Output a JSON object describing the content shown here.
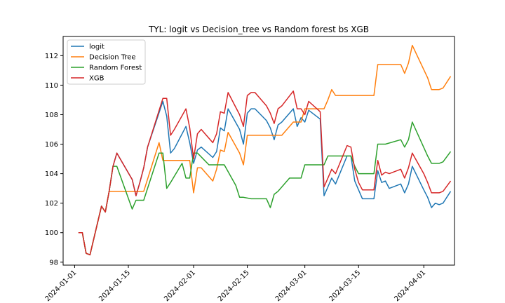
{
  "chart_data": {
    "type": "line",
    "title": "TYL: logit vs Decision_tree vs Random forest bs XGB",
    "xlabel": "",
    "ylabel": "",
    "xlim": [
      "2023-12-29",
      "2024-04-09"
    ],
    "ylim": [
      97.8,
      113.3
    ],
    "x_ticks": [
      "2024-01-01",
      "2024-01-15",
      "2024-02-01",
      "2024-02-15",
      "2024-03-01",
      "2024-03-15",
      "2024-04-01"
    ],
    "y_ticks": [
      98,
      100,
      102,
      104,
      106,
      108,
      110,
      112
    ],
    "grid": false,
    "legend_position": "top-left",
    "series": [
      {
        "name": "logit",
        "color": "#1f77b4",
        "points": [
          [
            "2024-01-02",
            100.0
          ],
          [
            "2024-01-03",
            100.0
          ],
          [
            "2024-01-04",
            98.6
          ],
          [
            "2024-01-05",
            98.5
          ],
          [
            "2024-01-08",
            101.8
          ],
          [
            "2024-01-09",
            101.4
          ],
          [
            "2024-01-10",
            102.8
          ],
          [
            "2024-01-11",
            104.5
          ],
          [
            "2024-01-12",
            105.4
          ],
          [
            "2024-01-16",
            103.6
          ],
          [
            "2024-01-17",
            102.5
          ],
          [
            "2024-01-18",
            103.4
          ],
          [
            "2024-01-19",
            104.4
          ],
          [
            "2024-01-20",
            105.8
          ],
          [
            "2024-01-24",
            108.9
          ],
          [
            "2024-01-25",
            107.9
          ],
          [
            "2024-01-26",
            105.4
          ],
          [
            "2024-01-27",
            105.7
          ],
          [
            "2024-01-30",
            107.2
          ],
          [
            "2024-01-31",
            106.1
          ],
          [
            "2024-02-01",
            104.7
          ],
          [
            "2024-02-02",
            105.6
          ],
          [
            "2024-02-03",
            105.8
          ],
          [
            "2024-02-06",
            105.1
          ],
          [
            "2024-02-07",
            105.5
          ],
          [
            "2024-02-08",
            107.1
          ],
          [
            "2024-02-09",
            106.9
          ],
          [
            "2024-02-10",
            108.4
          ],
          [
            "2024-02-13",
            107.0
          ],
          [
            "2024-02-14",
            106.0
          ],
          [
            "2024-02-15",
            108.1
          ],
          [
            "2024-02-16",
            108.4
          ],
          [
            "2024-02-17",
            108.4
          ],
          [
            "2024-02-20",
            107.6
          ],
          [
            "2024-02-21",
            107.1
          ],
          [
            "2024-02-22",
            106.3
          ],
          [
            "2024-02-23",
            107.3
          ],
          [
            "2024-02-24",
            107.5
          ],
          [
            "2024-02-27",
            108.4
          ],
          [
            "2024-02-28",
            107.2
          ],
          [
            "2024-02-29",
            107.8
          ],
          [
            "2024-03-01",
            107.5
          ],
          [
            "2024-03-02",
            108.3
          ],
          [
            "2024-03-05",
            107.7
          ],
          [
            "2024-03-06",
            102.5
          ],
          [
            "2024-03-07",
            103.1
          ],
          [
            "2024-03-08",
            103.7
          ],
          [
            "2024-03-09",
            103.3
          ],
          [
            "2024-03-12",
            105.2
          ],
          [
            "2024-03-13",
            105.2
          ],
          [
            "2024-03-14",
            103.5
          ],
          [
            "2024-03-15",
            102.9
          ],
          [
            "2024-03-16",
            102.3
          ],
          [
            "2024-03-19",
            102.3
          ],
          [
            "2024-03-20",
            104.2
          ],
          [
            "2024-03-21",
            103.4
          ],
          [
            "2024-03-22",
            103.5
          ],
          [
            "2024-03-23",
            103.0
          ],
          [
            "2024-03-26",
            103.3
          ],
          [
            "2024-03-27",
            102.7
          ],
          [
            "2024-03-28",
            103.3
          ],
          [
            "2024-03-29",
            104.5
          ],
          [
            "2024-04-01",
            102.9
          ],
          [
            "2024-04-02",
            102.4
          ],
          [
            "2024-04-03",
            101.7
          ],
          [
            "2024-04-04",
            102.0
          ],
          [
            "2024-04-05",
            101.9
          ],
          [
            "2024-04-06",
            102.0
          ],
          [
            "2024-04-08",
            102.8
          ]
        ]
      },
      {
        "name": "Decision Tree",
        "color": "#ff7f0e",
        "points": [
          [
            "2024-01-02",
            100.0
          ],
          [
            "2024-01-03",
            100.0
          ],
          [
            "2024-01-04",
            98.6
          ],
          [
            "2024-01-05",
            98.5
          ],
          [
            "2024-01-08",
            101.8
          ],
          [
            "2024-01-09",
            101.4
          ],
          [
            "2024-01-10",
            102.8
          ],
          [
            "2024-01-16",
            102.8
          ],
          [
            "2024-01-17",
            102.8
          ],
          [
            "2024-01-18",
            102.8
          ],
          [
            "2024-01-19",
            102.8
          ],
          [
            "2024-01-23",
            106.1
          ],
          [
            "2024-01-24",
            104.9
          ],
          [
            "2024-01-30",
            104.9
          ],
          [
            "2024-01-31",
            104.9
          ],
          [
            "2024-02-01",
            102.7
          ],
          [
            "2024-02-02",
            104.4
          ],
          [
            "2024-02-03",
            104.4
          ],
          [
            "2024-02-06",
            103.5
          ],
          [
            "2024-02-07",
            104.3
          ],
          [
            "2024-02-08",
            105.6
          ],
          [
            "2024-02-09",
            105.5
          ],
          [
            "2024-02-10",
            106.8
          ],
          [
            "2024-02-13",
            105.4
          ],
          [
            "2024-02-14",
            104.6
          ],
          [
            "2024-02-15",
            106.6
          ],
          [
            "2024-02-16",
            106.6
          ],
          [
            "2024-02-23",
            106.6
          ],
          [
            "2024-02-24",
            106.6
          ],
          [
            "2024-02-27",
            107.5
          ],
          [
            "2024-02-28",
            107.5
          ],
          [
            "2024-02-29",
            107.5
          ],
          [
            "2024-03-01",
            108.4
          ],
          [
            "2024-03-05",
            108.4
          ],
          [
            "2024-03-06",
            108.4
          ],
          [
            "2024-03-07",
            109.0
          ],
          [
            "2024-03-08",
            109.7
          ],
          [
            "2024-03-09",
            109.3
          ],
          [
            "2024-03-19",
            109.3
          ],
          [
            "2024-03-20",
            111.4
          ],
          [
            "2024-03-26",
            111.4
          ],
          [
            "2024-03-27",
            110.8
          ],
          [
            "2024-03-28",
            111.5
          ],
          [
            "2024-03-29",
            112.7
          ],
          [
            "2024-04-02",
            110.5
          ],
          [
            "2024-04-03",
            109.7
          ],
          [
            "2024-04-04",
            109.7
          ],
          [
            "2024-04-05",
            109.7
          ],
          [
            "2024-04-06",
            109.8
          ],
          [
            "2024-04-08",
            110.6
          ]
        ]
      },
      {
        "name": "Random Forest",
        "color": "#2ca02c",
        "points": [
          [
            "2024-01-02",
            100.0
          ],
          [
            "2024-01-03",
            100.0
          ],
          [
            "2024-01-04",
            98.6
          ],
          [
            "2024-01-05",
            98.5
          ],
          [
            "2024-01-08",
            101.8
          ],
          [
            "2024-01-09",
            101.4
          ],
          [
            "2024-01-10",
            102.8
          ],
          [
            "2024-01-11",
            104.5
          ],
          [
            "2024-01-12",
            104.5
          ],
          [
            "2024-01-16",
            101.6
          ],
          [
            "2024-01-17",
            102.2
          ],
          [
            "2024-01-19",
            102.2
          ],
          [
            "2024-01-23",
            105.4
          ],
          [
            "2024-01-24",
            105.4
          ],
          [
            "2024-01-25",
            103.0
          ],
          [
            "2024-01-26",
            103.4
          ],
          [
            "2024-01-29",
            104.7
          ],
          [
            "2024-01-30",
            103.7
          ],
          [
            "2024-01-31",
            103.7
          ],
          [
            "2024-02-01",
            105.4
          ],
          [
            "2024-02-02",
            105.4
          ],
          [
            "2024-02-05",
            104.6
          ],
          [
            "2024-02-06",
            104.6
          ],
          [
            "2024-02-09",
            104.6
          ],
          [
            "2024-02-12",
            103.2
          ],
          [
            "2024-02-13",
            102.4
          ],
          [
            "2024-02-14",
            102.4
          ],
          [
            "2024-02-16",
            102.3
          ],
          [
            "2024-02-20",
            102.3
          ],
          [
            "2024-02-21",
            101.7
          ],
          [
            "2024-02-22",
            102.6
          ],
          [
            "2024-02-23",
            102.8
          ],
          [
            "2024-02-26",
            103.7
          ],
          [
            "2024-02-29",
            103.7
          ],
          [
            "2024-03-01",
            104.6
          ],
          [
            "2024-03-05",
            104.6
          ],
          [
            "2024-03-06",
            104.6
          ],
          [
            "2024-03-07",
            105.2
          ],
          [
            "2024-03-12",
            105.2
          ],
          [
            "2024-03-13",
            105.2
          ],
          [
            "2024-03-14",
            104.5
          ],
          [
            "2024-03-15",
            104.0
          ],
          [
            "2024-03-19",
            104.0
          ],
          [
            "2024-03-20",
            106.0
          ],
          [
            "2024-03-22",
            106.0
          ],
          [
            "2024-03-26",
            106.3
          ],
          [
            "2024-03-27",
            105.8
          ],
          [
            "2024-03-28",
            106.3
          ],
          [
            "2024-03-29",
            107.5
          ],
          [
            "2024-04-02",
            105.2
          ],
          [
            "2024-04-03",
            104.7
          ],
          [
            "2024-04-04",
            104.7
          ],
          [
            "2024-04-05",
            104.7
          ],
          [
            "2024-04-06",
            104.8
          ],
          [
            "2024-04-08",
            105.5
          ]
        ]
      },
      {
        "name": "XGB",
        "color": "#d62728",
        "points": [
          [
            "2024-01-02",
            100.0
          ],
          [
            "2024-01-03",
            100.0
          ],
          [
            "2024-01-04",
            98.6
          ],
          [
            "2024-01-05",
            98.5
          ],
          [
            "2024-01-08",
            101.8
          ],
          [
            "2024-01-09",
            101.4
          ],
          [
            "2024-01-10",
            102.8
          ],
          [
            "2024-01-11",
            104.5
          ],
          [
            "2024-01-12",
            105.4
          ],
          [
            "2024-01-16",
            103.6
          ],
          [
            "2024-01-17",
            102.5
          ],
          [
            "2024-01-18",
            103.4
          ],
          [
            "2024-01-19",
            104.4
          ],
          [
            "2024-01-20",
            105.8
          ],
          [
            "2024-01-24",
            109.1
          ],
          [
            "2024-01-25",
            109.1
          ],
          [
            "2024-01-26",
            106.6
          ],
          [
            "2024-01-27",
            107.0
          ],
          [
            "2024-01-30",
            108.4
          ],
          [
            "2024-01-31",
            107.1
          ],
          [
            "2024-02-01",
            105.0
          ],
          [
            "2024-02-02",
            106.7
          ],
          [
            "2024-02-03",
            107.0
          ],
          [
            "2024-02-06",
            106.1
          ],
          [
            "2024-02-07",
            106.7
          ],
          [
            "2024-02-08",
            108.2
          ],
          [
            "2024-02-09",
            108.1
          ],
          [
            "2024-02-10",
            109.5
          ],
          [
            "2024-02-13",
            108.0
          ],
          [
            "2024-02-14",
            107.2
          ],
          [
            "2024-02-15",
            109.3
          ],
          [
            "2024-02-16",
            109.5
          ],
          [
            "2024-02-17",
            109.5
          ],
          [
            "2024-02-20",
            108.6
          ],
          [
            "2024-02-21",
            108.1
          ],
          [
            "2024-02-22",
            107.4
          ],
          [
            "2024-02-23",
            108.4
          ],
          [
            "2024-02-24",
            108.6
          ],
          [
            "2024-02-27",
            109.6
          ],
          [
            "2024-02-28",
            108.4
          ],
          [
            "2024-02-29",
            108.4
          ],
          [
            "2024-03-01",
            108.0
          ],
          [
            "2024-03-02",
            108.9
          ],
          [
            "2024-03-05",
            108.2
          ],
          [
            "2024-03-06",
            103.1
          ],
          [
            "2024-03-07",
            103.7
          ],
          [
            "2024-03-08",
            104.3
          ],
          [
            "2024-03-09",
            104.0
          ],
          [
            "2024-03-12",
            105.9
          ],
          [
            "2024-03-13",
            105.8
          ],
          [
            "2024-03-14",
            104.3
          ],
          [
            "2024-03-15",
            103.4
          ],
          [
            "2024-03-16",
            102.9
          ],
          [
            "2024-03-19",
            102.9
          ],
          [
            "2024-03-20",
            104.9
          ],
          [
            "2024-03-21",
            103.9
          ],
          [
            "2024-03-22",
            104.1
          ],
          [
            "2024-03-23",
            104.0
          ],
          [
            "2024-03-26",
            104.3
          ],
          [
            "2024-03-27",
            103.7
          ],
          [
            "2024-03-28",
            104.4
          ],
          [
            "2024-03-29",
            105.4
          ],
          [
            "2024-04-01",
            104.0
          ],
          [
            "2024-04-02",
            103.4
          ],
          [
            "2024-04-03",
            102.7
          ],
          [
            "2024-04-04",
            102.7
          ],
          [
            "2024-04-05",
            102.7
          ],
          [
            "2024-04-06",
            102.8
          ],
          [
            "2024-04-08",
            103.5
          ]
        ]
      }
    ]
  }
}
